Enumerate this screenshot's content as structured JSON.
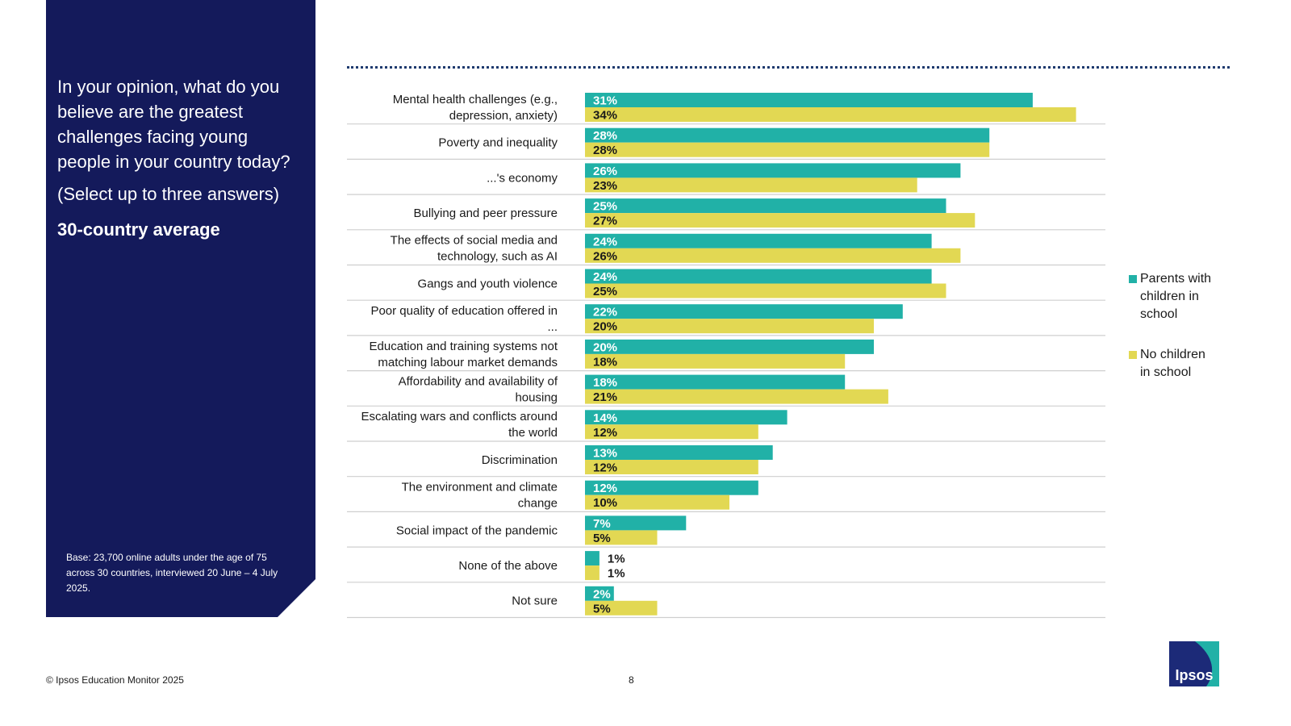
{
  "panel": {
    "question": "In your opinion, what do you believe are the greatest challenges facing young people in your country today?",
    "instruction": "(Select up to three answers)",
    "average_label": "30-country average",
    "base_note": "Base: 23,700 online adults under the age of 75 across 30 countries, interviewed 20 June – 4 July 2025."
  },
  "chart_data": {
    "type": "bar",
    "orientation": "horizontal",
    "categories": [
      "Mental health challenges (e.g., depression, anxiety)",
      "Poverty and inequality",
      "...'s economy",
      "Bullying and peer pressure",
      "The effects of social media and technology, such as AI",
      "Gangs and youth violence",
      "Poor quality of education offered in ...",
      "Education and training systems not matching labour market demands",
      "Affordability and availability of housing",
      "Escalating wars and conflicts around the world",
      "Discrimination",
      "The environment and climate change",
      "Social impact of the pandemic",
      "None of the above",
      "Not sure"
    ],
    "category_lines": [
      [
        "Mental health challenges (e.g.,",
        "depression, anxiety)"
      ],
      [
        "Poverty and inequality"
      ],
      [
        "...'s economy"
      ],
      [
        "Bullying and peer pressure"
      ],
      [
        "The effects of social media and",
        "technology, such as AI"
      ],
      [
        "Gangs and youth violence"
      ],
      [
        "Poor quality of education offered in",
        "..."
      ],
      [
        "Education and training systems not",
        "matching labour market demands"
      ],
      [
        "Affordability and availability of",
        "housing"
      ],
      [
        "Escalating wars and conflicts around",
        "the world"
      ],
      [
        "Discrimination"
      ],
      [
        "The environment and climate",
        "change"
      ],
      [
        "Social impact of the pandemic"
      ],
      [
        "None of the above"
      ],
      [
        "Not sure"
      ]
    ],
    "series": [
      {
        "name": "Parents with children in school",
        "color": "#21b1a7",
        "values": [
          31,
          28,
          26,
          25,
          24,
          24,
          22,
          20,
          18,
          14,
          13,
          12,
          7,
          1,
          2
        ]
      },
      {
        "name": "No children in school",
        "color": "#e2d853",
        "values": [
          34,
          28,
          23,
          27,
          26,
          25,
          20,
          18,
          21,
          12,
          12,
          10,
          5,
          1,
          5
        ]
      }
    ],
    "value_suffix": "%",
    "xlim": [
      0,
      34
    ],
    "legend_position": "right",
    "grid": false
  },
  "legend": {
    "items": [
      {
        "lines": [
          "Parents with",
          "children in",
          "school"
        ],
        "color": "#21b1a7"
      },
      {
        "lines": [
          "No children",
          "in school"
        ],
        "color": "#e2d853"
      }
    ]
  },
  "footer": {
    "copyright": "© Ipsos Education Monitor 2025",
    "page_number": "8"
  },
  "logo": {
    "text": "Ipsos"
  }
}
